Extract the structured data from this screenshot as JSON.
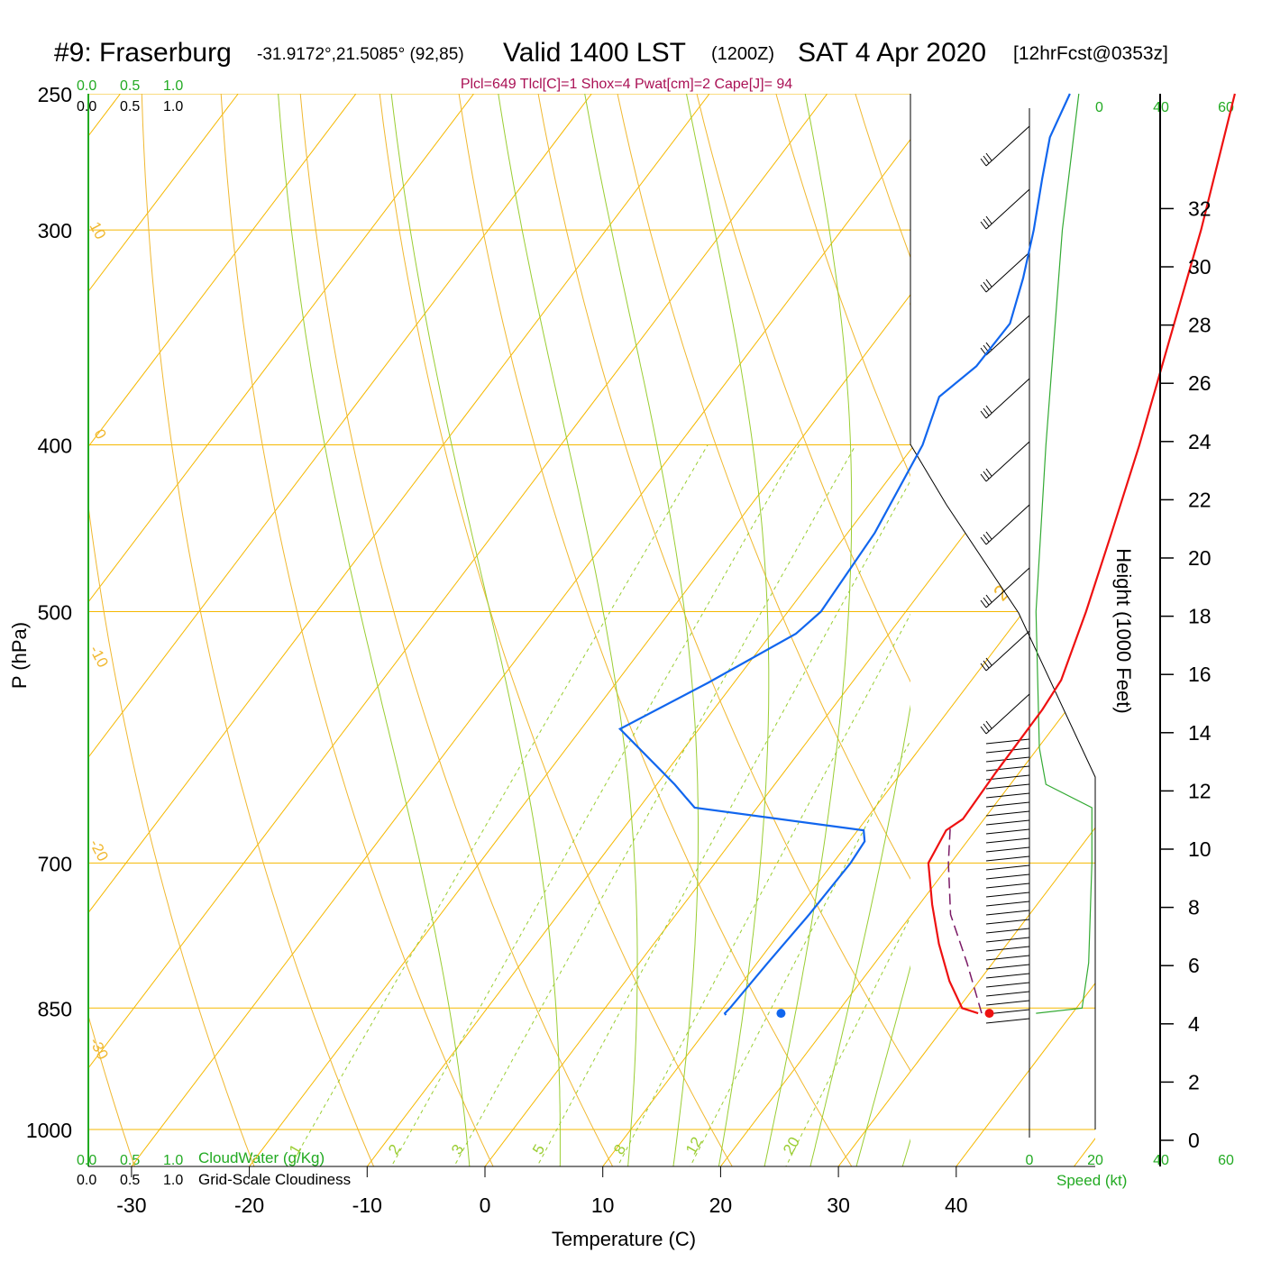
{
  "title": {
    "station": "#9: Fraserburg",
    "coords": "-31.9172°,21.5085° (92,85)",
    "valid": "Valid 1400 LST",
    "utc": "(1200Z)",
    "date": "SAT 4 Apr 2020",
    "forecast": "[12hrFcst@0353z]"
  },
  "indices": "Plcl=649 Tlcl[C]=1 Shox=4 Pwat[cm]=2 Cape[J]= 94",
  "cloud_scales": {
    "top_green": [
      "0.0",
      "0.5",
      "1.0"
    ],
    "top_black": [
      "0.0",
      "0.5",
      "1.0"
    ],
    "bottom_green": [
      "0.0",
      "0.5",
      "1.0"
    ],
    "bottom_black": [
      "0.0",
      "0.5",
      "1.0"
    ],
    "cloudwater_label": "CloudWater (g/Kg)",
    "cloudiness_label": "Grid-Scale Cloudiness"
  },
  "speed_axis": {
    "ticks": [
      "0",
      "20",
      "40",
      "60"
    ],
    "label": "Speed (kt)"
  },
  "colors": {
    "temperature": "#ee1111",
    "dewpoint": "#1166ee",
    "isotherm": "#f5b800",
    "dry_adiabat": "#f0b830",
    "moist_adiabat": "#9acd32",
    "mixing_ratio": "#9acd32",
    "parcel": "#7a1a66",
    "speed": "#33aa33",
    "cloud_scale": "#22aa22",
    "indices": "#aa1155"
  },
  "chart_data": {
    "type": "skew-t",
    "xlabel": "Temperature (C)",
    "ylabel": "P (hPa)",
    "y2label": "Height (1000 Feet)",
    "x_ticks": [
      "-30",
      "-20",
      "-10",
      "0",
      "10",
      "20",
      "30",
      "40"
    ],
    "p_ticks": [
      "250",
      "300",
      "400",
      "500",
      "700",
      "850",
      "1000"
    ],
    "height_ticks": [
      "0",
      "2",
      "4",
      "6",
      "8",
      "10",
      "12",
      "14",
      "16",
      "18",
      "20",
      "22",
      "24",
      "26",
      "28",
      "30",
      "32"
    ],
    "dry_adiabat_labels": [
      "10",
      "0",
      "-10",
      "-20",
      "-30",
      "0",
      "10",
      "20",
      "30"
    ],
    "mixing_ratio_labels": [
      "1",
      "2",
      "3",
      "5",
      "8",
      "12",
      "20"
    ],
    "temperature": [
      [
        856,
        32.0
      ],
      [
        850,
        30.3
      ],
      [
        820,
        27.5
      ],
      [
        780,
        24.2
      ],
      [
        740,
        21.1
      ],
      [
        700,
        18.1
      ],
      [
        670,
        17.5
      ],
      [
        660,
        18.2
      ],
      [
        620,
        18.0
      ],
      [
        570,
        17.9
      ],
      [
        548,
        17.6
      ],
      [
        500,
        15.3
      ],
      [
        450,
        12.4
      ],
      [
        400,
        9.1
      ],
      [
        350,
        5.1
      ],
      [
        300,
        0.5
      ],
      [
        250,
        -5.4
      ]
    ],
    "dewpoint": [
      [
        858,
        10.7
      ],
      [
        856,
        10.5
      ],
      [
        850,
        10.6
      ],
      [
        800,
        10.9
      ],
      [
        750,
        11.3
      ],
      [
        700,
        11.5
      ],
      [
        680,
        11.3
      ],
      [
        670,
        10.5
      ],
      [
        650,
        -5.3
      ],
      [
        630,
        -8.5
      ],
      [
        585,
        -16.7
      ],
      [
        550,
        -12.2
      ],
      [
        515,
        -7.9
      ],
      [
        500,
        -7.2
      ],
      [
        450,
        -7.7
      ],
      [
        400,
        -9.3
      ],
      [
        375,
        -11.0
      ],
      [
        360,
        -9.8
      ],
      [
        340,
        -9.7
      ],
      [
        320,
        -11.5
      ],
      [
        300,
        -13.7
      ],
      [
        280,
        -16.3
      ],
      [
        265,
        -18.3
      ],
      [
        250,
        -19.4
      ]
    ],
    "parcel": [
      [
        856,
        32.3
      ],
      [
        800,
        27.8
      ],
      [
        750,
        23.3
      ],
      [
        700,
        19.8
      ],
      [
        665,
        17.5
      ]
    ],
    "surface_temperature": 32.8,
    "surface_dewpoint": 15.5,
    "surface_pressure": 856,
    "wind_speed": [
      [
        856,
        2
      ],
      [
        850,
        16
      ],
      [
        800,
        18
      ],
      [
        700,
        19
      ],
      [
        650,
        19
      ],
      [
        630,
        5
      ],
      [
        600,
        3
      ],
      [
        500,
        2
      ],
      [
        400,
        5
      ],
      [
        300,
        10
      ],
      [
        250,
        15
      ]
    ]
  }
}
